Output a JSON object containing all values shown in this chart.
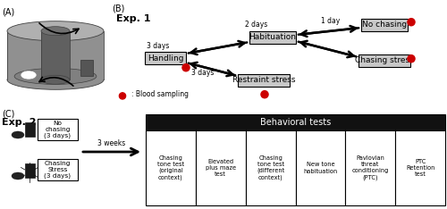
{
  "bg_color": "#ffffff",
  "panel_A_label": "(A)",
  "panel_B_label": "(B)",
  "panel_C_label": "(C)",
  "exp1_label": "Exp. 1",
  "exp2_label": "Exp. 2",
  "handling_text": "Handling",
  "habituation_text": "Habituation",
  "restraint_text": "Restraint stress",
  "no_chasing_text": "No chasing",
  "chasing_stress_text": "Chasing stress",
  "blood_label": ": Blood sampling",
  "box_color": "#c8c8c8",
  "box_edge": "#000000",
  "arrow_color": "#000000",
  "blood_color": "#cc0000",
  "days_3a": "3 days",
  "days_3b": "3 days",
  "days_2": "2 days",
  "days_1": "1 day",
  "weeks_3": "3 weeks",
  "no_chasing_box": "No\nchasing\n(3 days)",
  "chasing_stress_box": "Chasing\nStress\n(3 days)",
  "behavioral_header": "Behavioral tests",
  "behavioral_cols": [
    "Chasing\ntone test\n(original\ncontext)",
    "Elevated\nplus maze\ntest",
    "Chasing\ntone test\n(different\ncontext)",
    "New tone\nhabituation",
    "Pavlovian\nthreat\nconditioning\n(PTC)",
    "PTC\nRetention\ntest"
  ],
  "header_bg": "#111111",
  "header_fg": "#ffffff",
  "col_bg": "#ffffff",
  "col_edge": "#000000",
  "cyl_outer_face": "#909090",
  "cyl_outer_top": "#b0b0b0",
  "cyl_inner_body": "#606060",
  "cyl_center_body": "#505050",
  "cyl_floor": "#808080",
  "cyl_edge": "#404040"
}
